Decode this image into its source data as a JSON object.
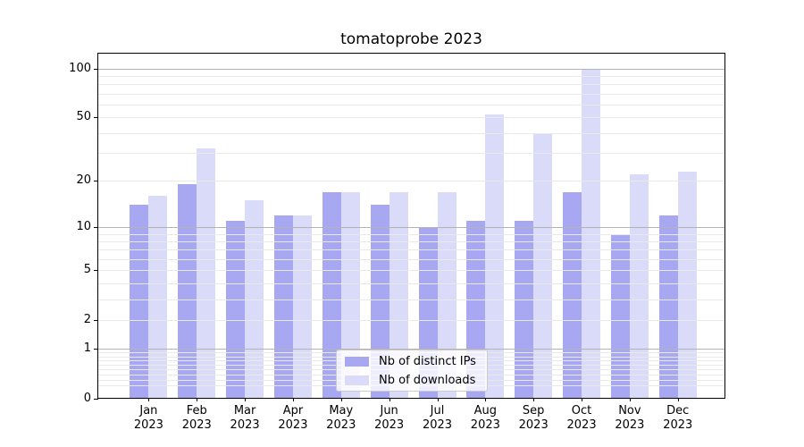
{
  "chart_data": {
    "type": "bar",
    "title": "tomatoprobe 2023",
    "categories": [
      {
        "month": "Jan",
        "year": "2023"
      },
      {
        "month": "Feb",
        "year": "2023"
      },
      {
        "month": "Mar",
        "year": "2023"
      },
      {
        "month": "Apr",
        "year": "2023"
      },
      {
        "month": "May",
        "year": "2023"
      },
      {
        "month": "Jun",
        "year": "2023"
      },
      {
        "month": "Jul",
        "year": "2023"
      },
      {
        "month": "Aug",
        "year": "2023"
      },
      {
        "month": "Sep",
        "year": "2023"
      },
      {
        "month": "Oct",
        "year": "2023"
      },
      {
        "month": "Nov",
        "year": "2023"
      },
      {
        "month": "Dec",
        "year": "2023"
      }
    ],
    "series": [
      {
        "name": "Nb of distinct IPs",
        "color": "#a7a7f2",
        "values": [
          14,
          19,
          11,
          12,
          17,
          14,
          10,
          11,
          11,
          17,
          9,
          12
        ]
      },
      {
        "name": "Nb of downloads",
        "color": "#dadaf9",
        "values": [
          16,
          32,
          15,
          12,
          17,
          17,
          17,
          52,
          40,
          98,
          22,
          23
        ]
      }
    ],
    "y_axis": {
      "scale": "log1p",
      "tick_values": [
        0,
        1,
        2,
        5,
        10,
        20,
        50,
        100
      ],
      "tick_labels": [
        "0",
        "1",
        "2",
        "5",
        "10",
        "20",
        "50",
        "100"
      ],
      "range": [
        0,
        124
      ],
      "major_gridlines": [
        1,
        10,
        100
      ],
      "minor_gridlines": [
        0.2,
        0.3,
        0.4,
        0.5,
        0.6,
        0.7,
        0.8,
        0.9,
        2,
        3,
        4,
        5,
        6,
        7,
        8,
        9,
        20,
        30,
        40,
        50,
        60,
        70,
        80,
        90
      ]
    },
    "xlabel": "",
    "ylabel": "",
    "grid": true,
    "legend_position": "lower center"
  },
  "colors": {
    "major_grid": "#b3b3b3",
    "minor_grid": "#e9e9e9",
    "axis": "#000000",
    "legend_border": "#cccccc"
  }
}
